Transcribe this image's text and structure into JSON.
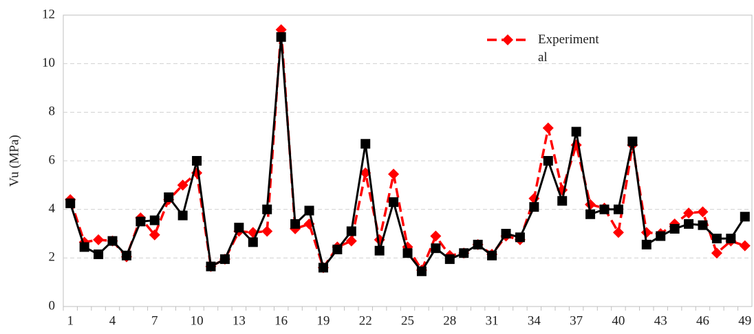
{
  "chart_data": {
    "type": "line",
    "y_label": "Vu (MPa)",
    "categories": [
      "1",
      null,
      null,
      "4",
      null,
      null,
      "7",
      null,
      null,
      "10",
      null,
      null,
      "13",
      null,
      null,
      "16",
      null,
      null,
      "19",
      null,
      null,
      "22",
      null,
      null,
      "25",
      null,
      null,
      "28",
      null,
      null,
      "31",
      null,
      null,
      "34",
      null,
      null,
      "37",
      null,
      null,
      "40",
      null,
      null,
      "43",
      null,
      null,
      "46",
      null,
      null,
      "49"
    ],
    "series": [
      {
        "name": "Experimental",
        "color": "#ff0000",
        "style": "dashed",
        "marker": "diamond",
        "values": [
          4.4,
          2.65,
          2.75,
          2.7,
          2.05,
          3.65,
          2.95,
          4.4,
          5.0,
          5.5,
          1.65,
          1.95,
          3.1,
          3.05,
          3.1,
          11.4,
          3.2,
          3.4,
          1.6,
          2.45,
          2.7,
          5.5,
          2.75,
          5.45,
          2.45,
          1.5,
          2.9,
          2.1,
          2.2,
          2.55,
          2.15,
          2.9,
          2.75,
          4.45,
          7.35,
          4.8,
          6.65,
          4.2,
          4.05,
          3.05,
          6.65,
          3.05,
          3.0,
          3.4,
          3.85,
          3.9,
          2.2,
          2.7,
          2.5
        ]
      },
      {
        "color": "#000000",
        "style": "solid",
        "marker": "square",
        "values": [
          4.25,
          2.45,
          2.15,
          2.7,
          2.1,
          3.5,
          3.55,
          4.5,
          3.75,
          6.0,
          1.65,
          1.95,
          3.25,
          2.65,
          4.0,
          11.1,
          3.4,
          3.95,
          1.6,
          2.35,
          3.1,
          6.7,
          2.3,
          4.3,
          2.2,
          1.45,
          2.4,
          1.95,
          2.2,
          2.55,
          2.1,
          3.0,
          2.85,
          4.1,
          6.0,
          4.35,
          7.2,
          3.8,
          4.0,
          4.0,
          6.8,
          2.55,
          2.9,
          3.2,
          3.4,
          3.35,
          2.8,
          2.8,
          3.7
        ]
      }
    ],
    "ylim": [
      0,
      12
    ],
    "yticks": [
      0,
      2,
      4,
      6,
      8,
      10,
      12
    ],
    "grid": true
  }
}
